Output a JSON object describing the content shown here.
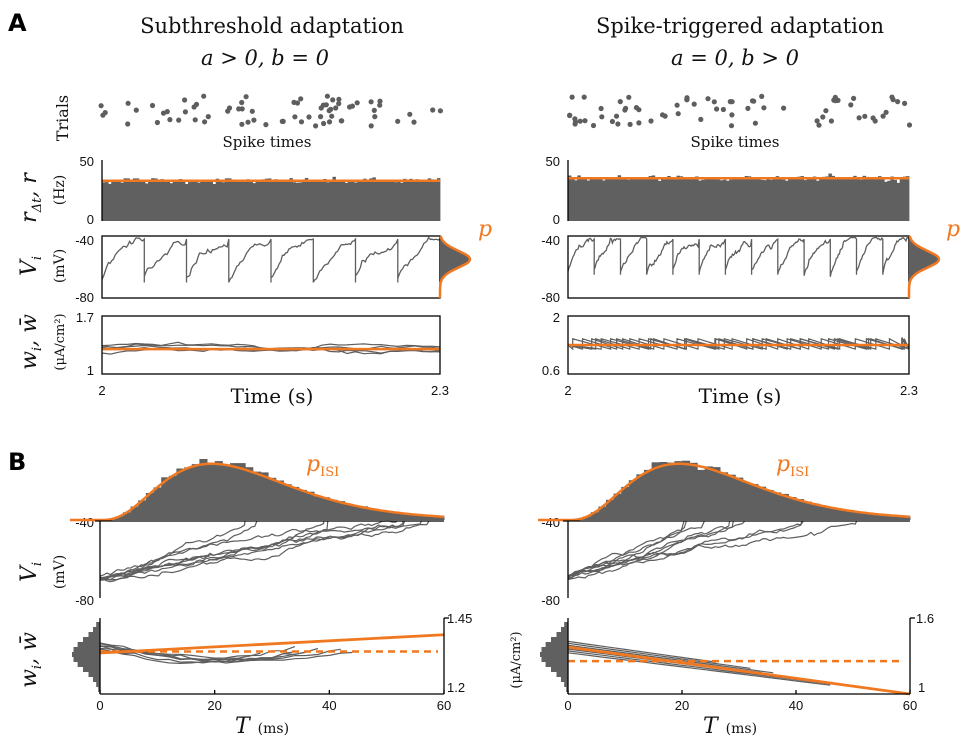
{
  "panel_letters": [
    "A",
    "B"
  ],
  "colors": {
    "orange": "#f07820",
    "gray": "#5e5e5e",
    "hist": "#606060"
  },
  "A": {
    "columns": [
      {
        "title": "Subthreshold adaptation",
        "subtitle": "a > 0, b = 0",
        "spike_label": "Spike times",
        "rate": {
          "ylim": [
            0,
            50
          ],
          "ticks": [
            "50",
            "0"
          ],
          "r_mean_hz": 33
        },
        "voltage": {
          "ylim": [
            -80,
            -40
          ],
          "ticks": [
            "-40",
            "-80"
          ],
          "reset_mv": -70,
          "threshold_mv": -40,
          "n_spikes": 8
        },
        "adapt": {
          "ylim": [
            1,
            1.7
          ],
          "ticks": [
            "1.7",
            "1"
          ],
          "w_bar": 1.3
        },
        "xticks": [
          "2",
          "2.3"
        ],
        "xlabel": "Time (s)",
        "p_label": "p"
      },
      {
        "title": "Spike-triggered adaptation",
        "subtitle": "a = 0, b > 0",
        "spike_label": "Spike times",
        "rate": {
          "ylim": [
            0,
            50
          ],
          "ticks": [
            "50",
            "0"
          ],
          "r_mean_hz": 35
        },
        "voltage": {
          "ylim": [
            -80,
            -40
          ],
          "ticks": [
            "-40",
            "-80"
          ],
          "reset_mv": -65,
          "threshold_mv": -40,
          "n_spikes": 13
        },
        "adapt": {
          "ylim": [
            0.6,
            2
          ],
          "ticks": [
            "2",
            "0.6"
          ],
          "w_bar": 1.3
        },
        "xticks": [
          "2",
          "2.3"
        ],
        "xlabel": "Time (s)",
        "p_label": "p"
      }
    ],
    "row_labels": {
      "trials": "Trials",
      "rate_sym": "r",
      "rate_sub": "Δt",
      "rate_sym2": ", r",
      "rate_unit": "(Hz)",
      "v_sym": "V",
      "v_sub": "i",
      "v_unit": "(mV)",
      "w_sym": "w",
      "w_sub": "i",
      "w_sym2": ", w̄",
      "w_unit": "(μA/cm²)"
    }
  },
  "B": {
    "columns": [
      {
        "isi_label": "p",
        "isi_sub": "ISI",
        "voltage": {
          "ylim": [
            -80,
            -40
          ],
          "ticks": [
            "-40",
            "-80"
          ]
        },
        "adapt": {
          "ylim": [
            1.2,
            1.45
          ],
          "ticks": [
            "1.45",
            "1.2"
          ],
          "w_bar_dashed": 1.34,
          "orange_line": {
            "x": [
              0,
              60
            ],
            "y": [
              1.335,
              1.395
            ]
          }
        },
        "xlim": [
          0,
          60
        ],
        "xticks": [
          "0",
          "20",
          "40",
          "60"
        ],
        "xlabel": "T",
        "xunit": "(ms)"
      },
      {
        "isi_label": "p",
        "isi_sub": "ISI",
        "voltage": {
          "ylim": [
            -80,
            -40
          ],
          "ticks": [
            "-40",
            "-80"
          ]
        },
        "adapt": {
          "ylim": [
            1,
            1.6
          ],
          "ticks": [
            "1.6",
            "1"
          ],
          "w_bar_dashed": 1.26,
          "orange_line": {
            "x": [
              0,
              60
            ],
            "y": [
              1.37,
              1.0
            ]
          }
        },
        "xlim": [
          0,
          60
        ],
        "xticks": [
          "0",
          "20",
          "40",
          "60"
        ],
        "xlabel": "T",
        "xunit": "(ms)"
      }
    ],
    "row_labels": {
      "v_sym": "V",
      "v_sub": "i",
      "v_unit": "(mV)",
      "w_sym": "w",
      "w_sub": "i",
      "w_sym2": ", w̄",
      "w_unit": "(μA/cm²)"
    }
  },
  "chart_data": [
    {
      "type": "line",
      "panel": "A-left",
      "rows": [
        "raster",
        "rate",
        "voltage",
        "adaptation"
      ],
      "x_range_s": [
        2,
        2.3
      ],
      "rate_hz": 33,
      "w_bar": 1.3
    },
    {
      "type": "line",
      "panel": "A-right",
      "rows": [
        "raster",
        "rate",
        "voltage",
        "adaptation"
      ],
      "x_range_s": [
        2,
        2.3
      ],
      "rate_hz": 35,
      "w_bar": 1.3
    },
    {
      "type": "line",
      "panel": "B-left",
      "x_range_ms": [
        0,
        60
      ],
      "isi_mode_ms": 25,
      "w_range": [
        1.2,
        1.45
      ]
    },
    {
      "type": "line",
      "panel": "B-right",
      "x_range_ms": [
        0,
        60
      ],
      "isi_mode_ms": 25,
      "w_range": [
        1,
        1.6
      ]
    }
  ]
}
